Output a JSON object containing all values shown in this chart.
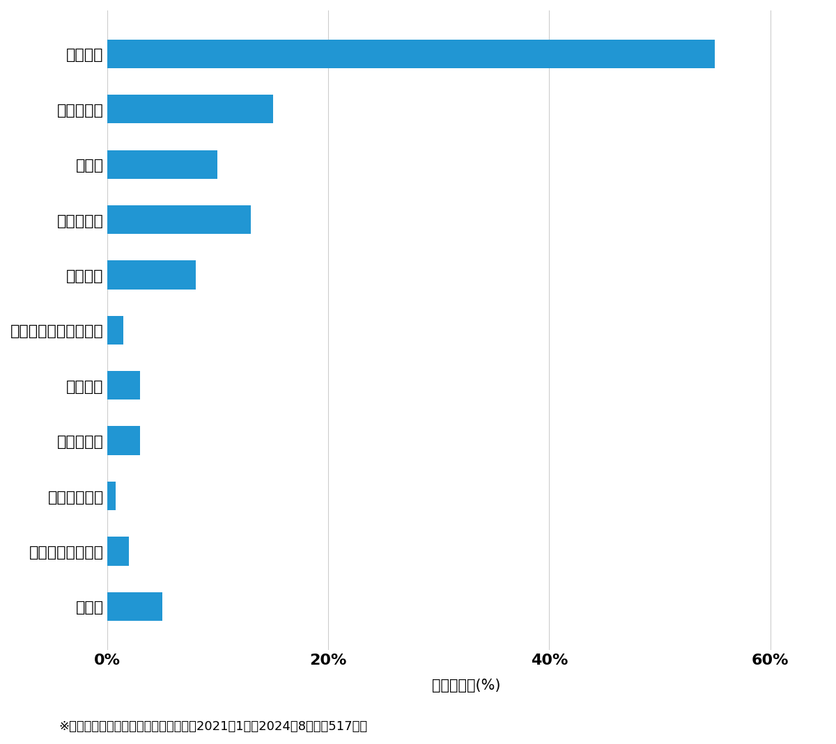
{
  "categories": [
    "その他",
    "スーツケース開錢",
    "その他鍵作成",
    "玄関鍵作成",
    "金庫開錢",
    "イモビ付国産車鍵作成",
    "車鍵作成",
    "その他開錢",
    "車開錢",
    "玄関鍵交換",
    "玄関開錢"
  ],
  "values": [
    5.0,
    2.0,
    0.8,
    3.0,
    3.0,
    1.5,
    8.0,
    13.0,
    10.0,
    15.0,
    55.0
  ],
  "bar_color": "#2196d3",
  "xlabel": "件数の割合(%)",
  "xlim": [
    0,
    65
  ],
  "xtick_values": [
    0,
    20,
    40,
    60
  ],
  "xtick_labels": [
    "0%",
    "20%",
    "40%",
    "60%"
  ],
  "footnote": "※弊社受付の案件を対象に集計（期間：2021年1月～2024年8月、計517件）",
  "background_color": "#ffffff",
  "bar_height": 0.52,
  "label_fontsize": 16,
  "tick_fontsize": 16,
  "xlabel_fontsize": 15,
  "footnote_fontsize": 13
}
